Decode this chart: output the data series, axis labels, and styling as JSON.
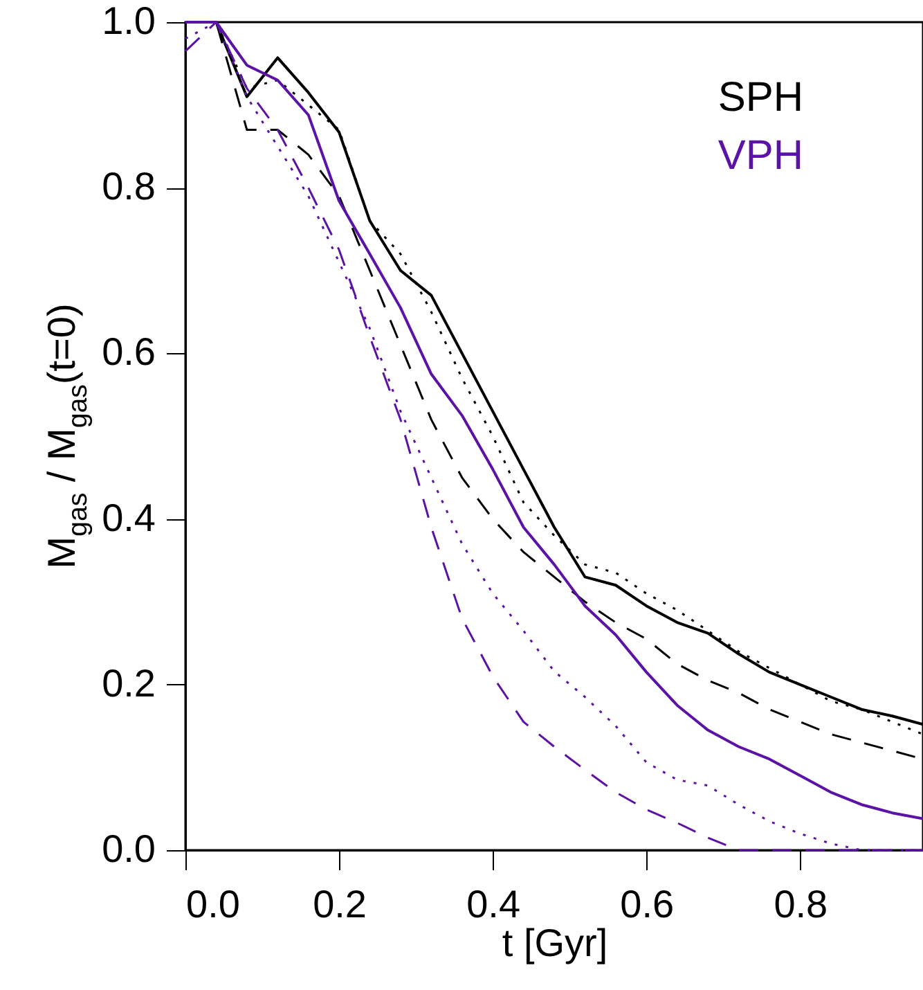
{
  "chart_data": {
    "type": "line",
    "xlabel": "t   [Gyr]",
    "ylabel": "M$_{gas}$ / M$_{gas}$(t=0)",
    "x": [
      0,
      0.04,
      0.08,
      0.12,
      0.16,
      0.2,
      0.24,
      0.28,
      0.32,
      0.36,
      0.4,
      0.44,
      0.48,
      0.52,
      0.56,
      0.6,
      0.64,
      0.68,
      0.72,
      0.76,
      0.8,
      0.84,
      0.88,
      0.92,
      0.96
    ],
    "xlim": [
      0,
      0.96
    ],
    "xticks": [
      {
        "value": 0,
        "label": "0.0"
      },
      0.2,
      0.4,
      0.6,
      0.8
    ],
    "ylim": [
      0,
      1
    ],
    "yticks": [
      {
        "value": 0,
        "label": "0.0"
      },
      0.2,
      0.4,
      0.6,
      0.8,
      {
        "value": 1,
        "label": "1.0"
      }
    ],
    "grid": false,
    "legend": "top right",
    "marker": "none",
    "series": [
      {
        "name": "SPH",
        "color": "#000000",
        "line_style": "solid",
        "values": [
          1.0,
          1.0,
          0.91,
          0.957,
          0.915,
          0.867,
          0.76,
          0.7,
          0.67,
          0.6,
          0.53,
          0.46,
          0.39,
          0.33,
          0.32,
          0.295,
          0.275,
          0.262,
          0.237,
          0.215,
          0.2,
          0.185,
          0.17,
          0.162,
          0.152
        ]
      },
      {
        "color": "#000000",
        "line_style": "dashed",
        "values": [
          1.0,
          1.0,
          0.87,
          0.87,
          0.84,
          0.79,
          0.7,
          0.61,
          0.52,
          0.45,
          0.4,
          0.36,
          0.33,
          0.3,
          0.275,
          0.255,
          0.225,
          0.205,
          0.19,
          0.17,
          0.155,
          0.14,
          0.13,
          0.12,
          0.11
        ]
      },
      {
        "color": "#000000",
        "line_style": "dotted",
        "values": [
          1.0,
          1.0,
          0.92,
          0.93,
          0.9,
          0.87,
          0.76,
          0.72,
          0.65,
          0.57,
          0.5,
          0.42,
          0.38,
          0.345,
          0.335,
          0.31,
          0.29,
          0.265,
          0.24,
          0.22,
          0.2,
          0.18,
          0.17,
          0.155,
          0.14
        ]
      },
      {
        "name": "VPH",
        "color": "#5b12a6",
        "line_style": "solid",
        "values": [
          1.0,
          1.0,
          0.948,
          0.93,
          0.888,
          0.784,
          0.72,
          0.655,
          0.575,
          0.525,
          0.46,
          0.39,
          0.345,
          0.295,
          0.26,
          0.215,
          0.175,
          0.145,
          0.125,
          0.11,
          0.09,
          0.07,
          0.055,
          0.045,
          0.038
        ]
      },
      {
        "color": "#5b12a6",
        "line_style": "dashed",
        "values": [
          0.965,
          1.0,
          0.92,
          0.87,
          0.8,
          0.725,
          0.62,
          0.52,
          0.39,
          0.28,
          0.21,
          0.155,
          0.125,
          0.097,
          0.07,
          0.049,
          0.033,
          0.015,
          0,
          0,
          0,
          0,
          0,
          0,
          0
        ]
      },
      {
        "color": "#5b12a6",
        "line_style": "dotted",
        "values": [
          0.98,
          1.0,
          0.91,
          0.85,
          0.79,
          0.71,
          0.63,
          0.53,
          0.45,
          0.37,
          0.31,
          0.265,
          0.216,
          0.185,
          0.15,
          0.106,
          0.085,
          0.078,
          0.055,
          0.035,
          0.02,
          0.008,
          0,
          0,
          0
        ]
      }
    ]
  }
}
